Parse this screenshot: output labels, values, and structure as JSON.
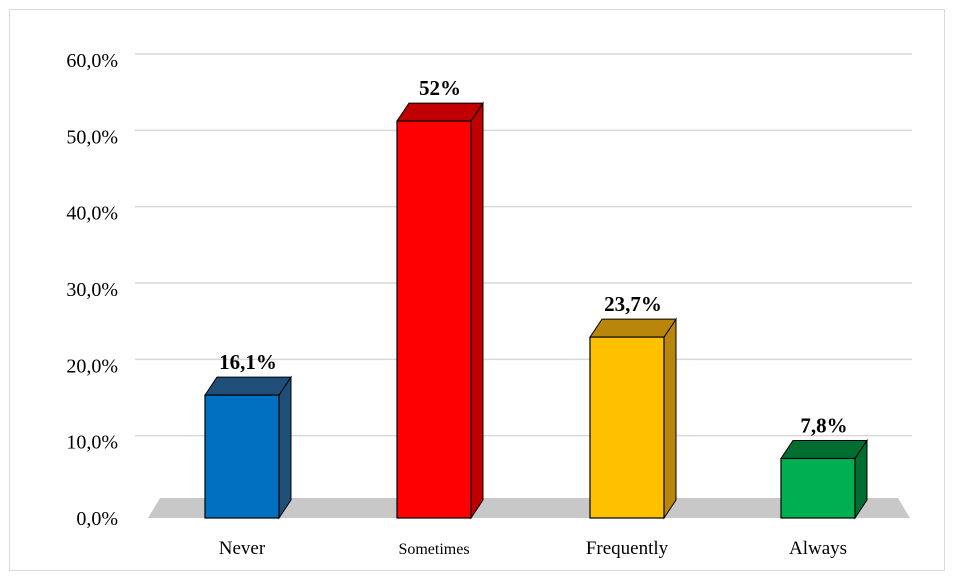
{
  "chart_data": {
    "type": "bar",
    "style": "3d-column",
    "categories": [
      "Never",
      "Sometimes",
      "Frequently",
      "Always"
    ],
    "values": [
      16.1,
      52.0,
      23.7,
      7.8
    ],
    "data_labels": [
      "16,1%",
      "52%",
      "23,7%",
      "7,8%"
    ],
    "ylim": [
      0,
      60
    ],
    "y_ticks": [
      0,
      10,
      20,
      30,
      40,
      50,
      60
    ],
    "y_tick_labels": [
      "0,0%",
      "10,0%",
      "20,0%",
      "30,0%",
      "40,0%",
      "50,0%",
      "60,0%"
    ],
    "title": "",
    "xlabel": "",
    "ylabel": "",
    "grid": true,
    "legend": "none",
    "colors": {
      "bars": [
        "#0070c0",
        "#ff0000",
        "#ffc000",
        "#00b050"
      ],
      "bar_sides": [
        "#1f4e79",
        "#c00000",
        "#b8860b",
        "#006d31"
      ],
      "floor": "#c8c8c8",
      "grid": "#d9d9d9"
    }
  }
}
